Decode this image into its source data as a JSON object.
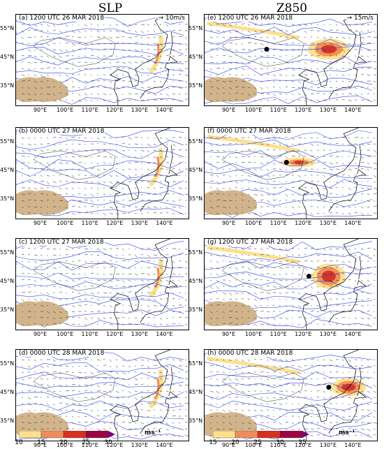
{
  "titles": {
    "left": "SLP",
    "right": "Z850"
  },
  "panels": [
    {
      "label": "(a) 1200 UTC 26 MAR 2018",
      "ref": "→ 10m/s",
      "field": "slp",
      "storm": null,
      "wind": [
        [
          430,
          470
        ],
        [
          440,
          480
        ]
      ]
    },
    {
      "label": "(b) 0000 UTC 27 MAR 2018",
      "ref": "",
      "field": "slp",
      "storm": null,
      "wind": [
        [
          420,
          440
        ],
        [
          455,
          470
        ]
      ]
    },
    {
      "label": "(c) 1200 UTC 27 MAR 2018",
      "ref": "",
      "field": "slp",
      "storm": null,
      "wind": [
        [
          440,
          470
        ],
        [
          380,
          400
        ]
      ]
    },
    {
      "label": "(d) 0000 UTC 28 MAR 2018",
      "ref": "",
      "field": "slp",
      "storm": null,
      "wind": [
        [
          420,
          450
        ],
        [
          420,
          440
        ]
      ]
    },
    {
      "label": "(e) 1200 UTC 26 MAR 2018",
      "ref": "→ 15m/s",
      "field": "z850",
      "storm": [
        105,
        48
      ],
      "wind": [
        [
          430,
          470
        ]
      ]
    },
    {
      "label": "(f) 0000 UTC 27 MAR 2018",
      "ref": "",
      "field": "z850",
      "storm": [
        113,
        48
      ],
      "wind": [
        [
          440,
          470
        ]
      ]
    },
    {
      "label": "(g) 1200 UTC 27 MAR 2018",
      "ref": "",
      "field": "z850",
      "storm": [
        122,
        47
      ],
      "wind": [
        [
          440,
          470
        ]
      ]
    },
    {
      "label": "(h) 0000 UTC 28 MAR 2018",
      "ref": "",
      "field": "z850",
      "storm": [
        130,
        47
      ],
      "wind": [
        [
          440,
          470
        ]
      ]
    }
  ],
  "lat_ticks": [
    "55°N",
    "45°N",
    "35°N"
  ],
  "lon_ticks": [
    "90°E",
    "100°E",
    "110°E",
    "120°E",
    "130°E",
    "140°E"
  ],
  "colorbars": [
    {
      "ticks": [
        "10",
        "15",
        "20",
        "25",
        "30"
      ],
      "unit": "ms⁻¹",
      "colors": [
        "#fce08c",
        "#f08c5a",
        "#d7301f",
        "#9e0142",
        "#7a0177"
      ]
    },
    {
      "ticks": [
        "15",
        "20",
        "25",
        "30",
        "35"
      ],
      "unit": "ms⁻¹",
      "colors": [
        "#fce08c",
        "#f08c5a",
        "#d7301f",
        "#9e0142",
        "#7a0177"
      ]
    }
  ],
  "colors": {
    "plateau": "#d2b48c",
    "contour": "#3344ee",
    "coast": "#000000"
  }
}
